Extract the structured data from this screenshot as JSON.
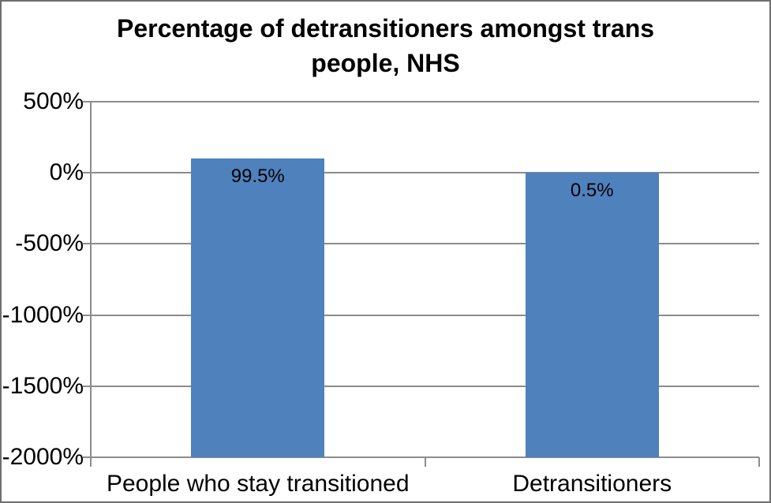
{
  "chart_data": {
    "type": "bar",
    "title": "Percentage of detransitioners amongst trans people, NHS",
    "title_lines": [
      "Percentage of detransitioners amongst trans",
      "people, NHS"
    ],
    "categories": [
      "People who stay transitioned",
      "Detransitioners"
    ],
    "values": [
      99.5,
      0.5
    ],
    "data_labels": [
      "99.5%",
      "0.5%"
    ],
    "series": [
      {
        "name": "Percentage",
        "values": [
          99.5,
          0.5
        ]
      }
    ],
    "xlabel": "",
    "ylabel": "",
    "ylim": [
      -2000,
      500
    ],
    "y_tick_step": 500,
    "y_tick_labels": [
      "500%",
      "0%",
      "-500%",
      "-1000%",
      "-1500%",
      "-2000%"
    ],
    "grid": true,
    "legend_position": "none",
    "bars_drawn_from": "axis_minimum",
    "colors": {
      "bar": "#4F81BD",
      "gridline": "#8C8C8C",
      "axis_line": "#8C8C8C",
      "text": "#000000",
      "background": "#FFFFFF",
      "border": "#6E6E6E"
    }
  }
}
